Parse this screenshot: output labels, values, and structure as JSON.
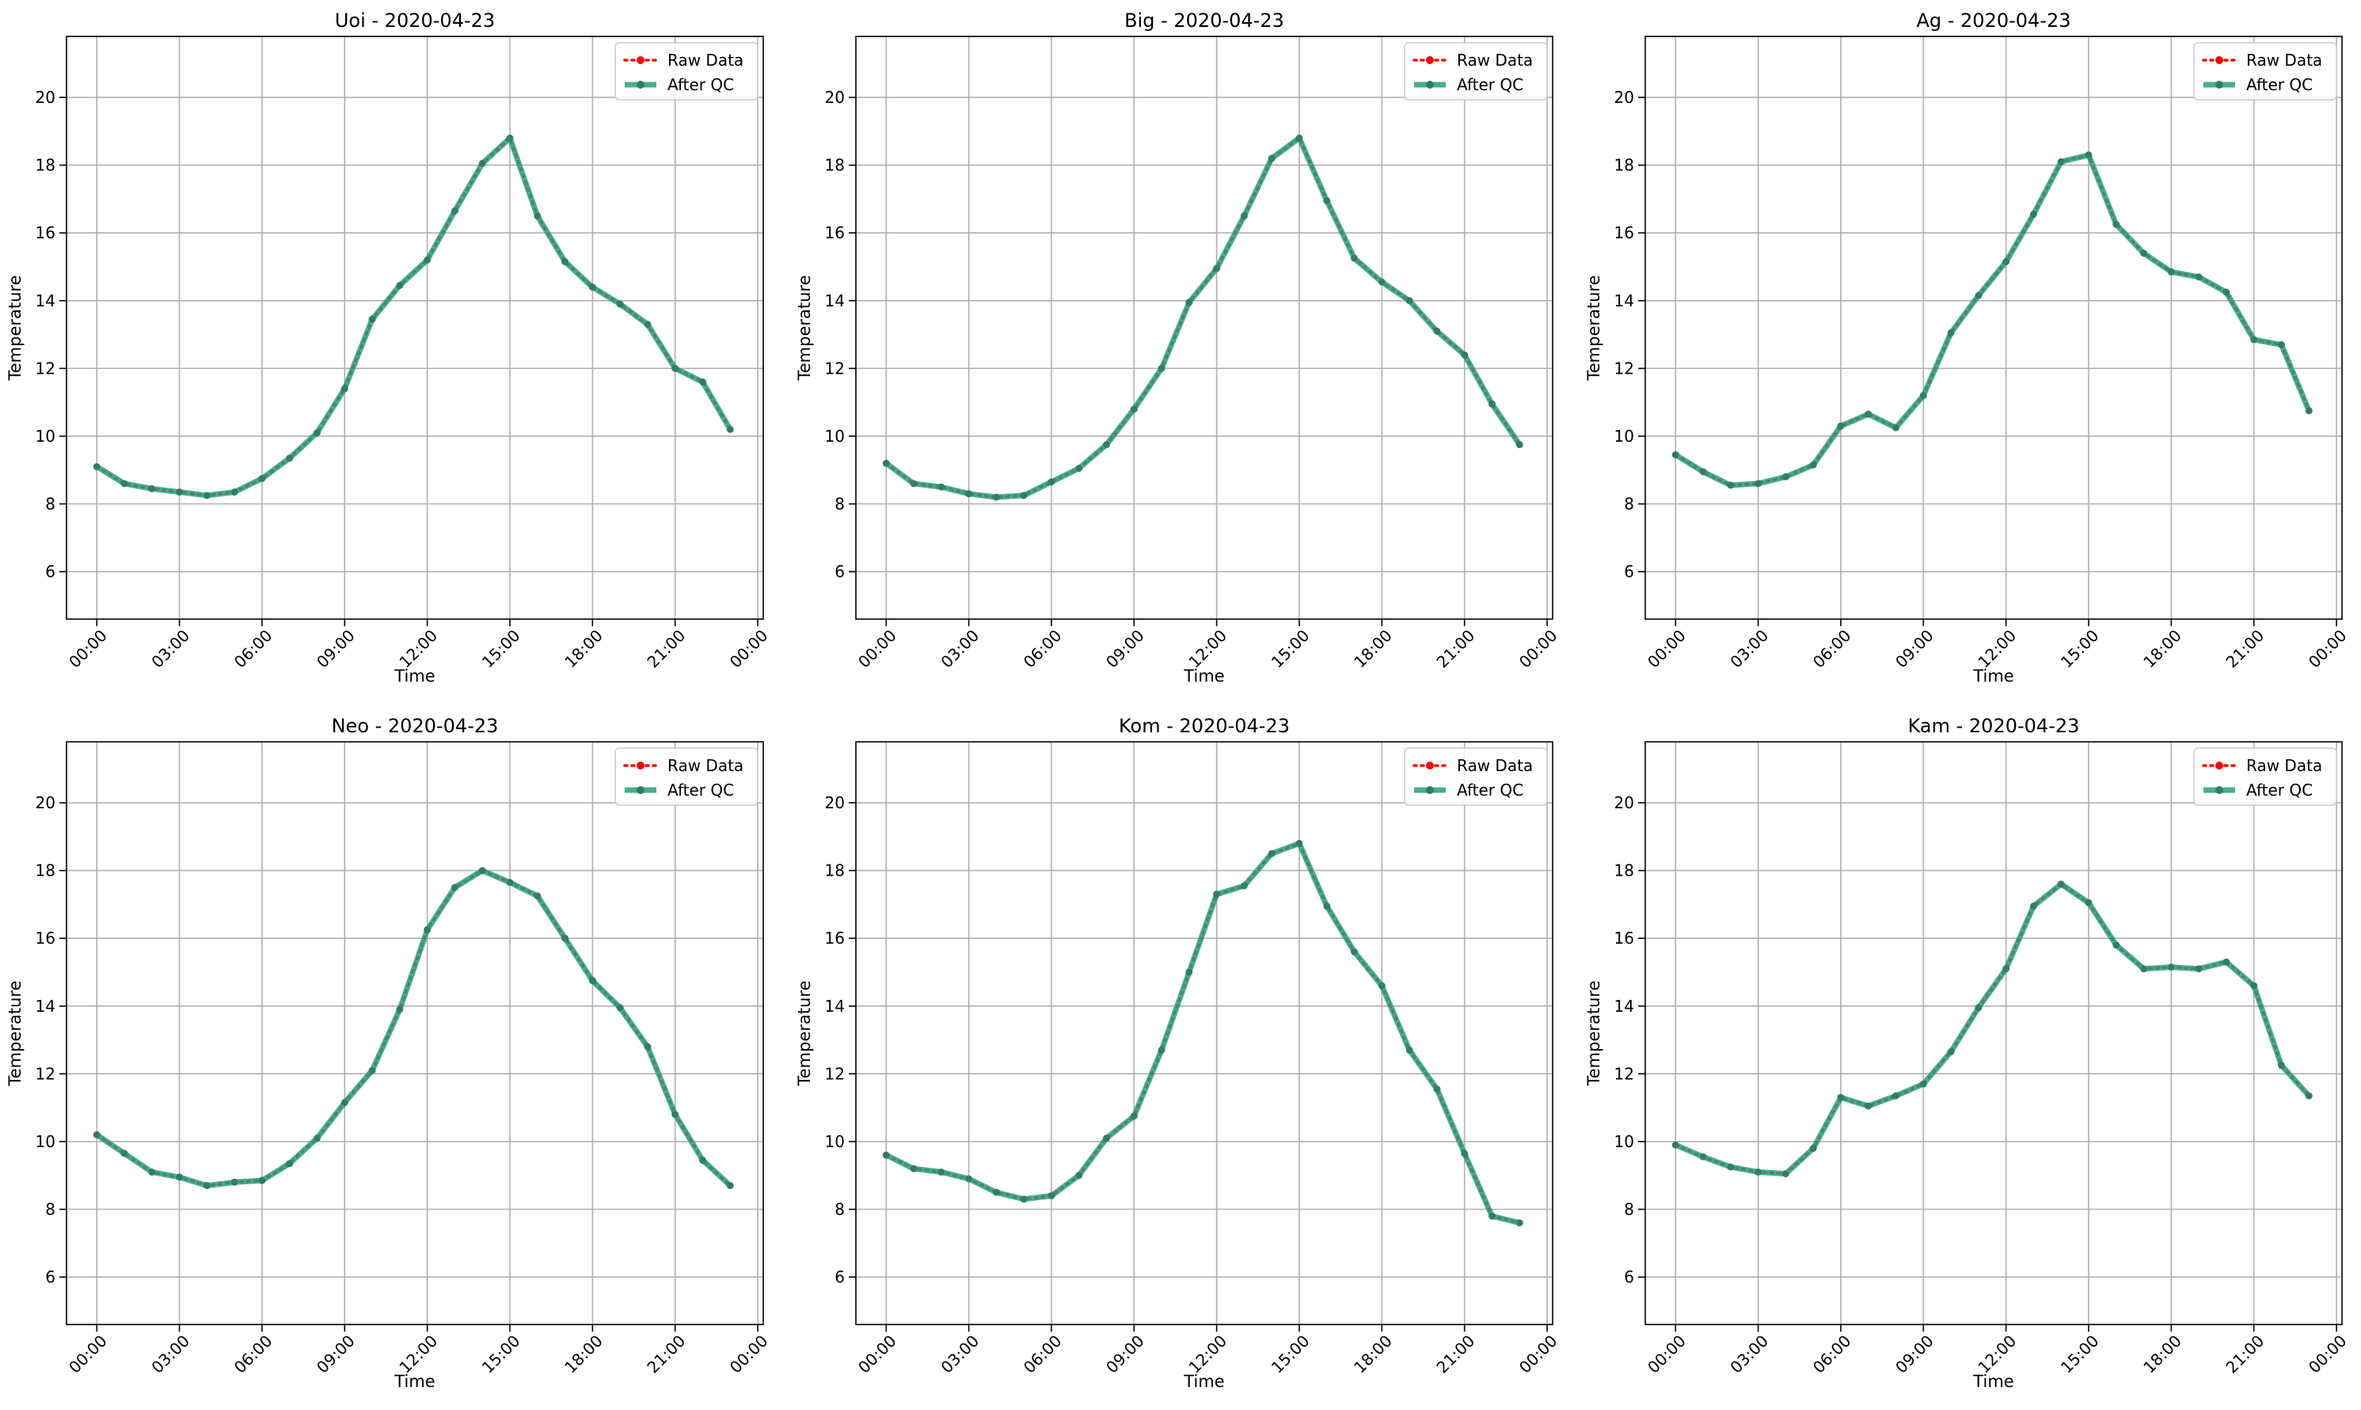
{
  "chart_data": [
    {
      "type": "line",
      "title": "Uoi - 2020-04-23",
      "xlabel": "Time",
      "ylabel": "Temperature",
      "x_ticks": [
        "00:00",
        "03:00",
        "06:00",
        "09:00",
        "12:00",
        "15:00",
        "18:00",
        "21:00",
        "00:00"
      ],
      "y_ticks": [
        6,
        8,
        10,
        12,
        14,
        16,
        18,
        20
      ],
      "ylim": [
        4.6,
        21.8
      ],
      "xlim_hours": [
        -1.1,
        24.2
      ],
      "grid": true,
      "legend": "top-right",
      "hours": [
        0,
        1,
        2,
        3,
        4,
        5,
        6,
        7,
        8,
        9,
        10,
        11,
        12,
        13,
        14,
        15,
        16,
        17,
        18,
        19,
        20,
        21,
        22,
        23
      ],
      "series": [
        {
          "name": "Raw Data",
          "color": "#ff0000",
          "style": "dotted",
          "values": [
            9.1,
            8.6,
            8.45,
            8.35,
            8.25,
            8.35,
            8.75,
            9.35,
            10.1,
            11.4,
            13.45,
            14.45,
            15.2,
            16.65,
            18.05,
            18.8,
            16.5,
            15.15,
            14.4,
            13.9,
            13.3,
            12.0,
            11.6,
            10.2
          ]
        },
        {
          "name": "After QC",
          "color": "#2a9d7e",
          "style": "solid",
          "values": [
            9.1,
            8.6,
            8.45,
            8.35,
            8.25,
            8.35,
            8.75,
            9.35,
            10.1,
            11.4,
            13.45,
            14.45,
            15.2,
            16.65,
            18.05,
            18.8,
            16.5,
            15.15,
            14.4,
            13.9,
            13.3,
            12.0,
            11.6,
            10.2
          ]
        }
      ]
    },
    {
      "type": "line",
      "title": "Big - 2020-04-23",
      "xlabel": "Time",
      "ylabel": "Temperature",
      "x_ticks": [
        "00:00",
        "03:00",
        "06:00",
        "09:00",
        "12:00",
        "15:00",
        "18:00",
        "21:00",
        "00:00"
      ],
      "y_ticks": [
        6,
        8,
        10,
        12,
        14,
        16,
        18,
        20
      ],
      "ylim": [
        4.6,
        21.8
      ],
      "xlim_hours": [
        -1.1,
        24.2
      ],
      "grid": true,
      "legend": "top-right",
      "hours": [
        0,
        1,
        2,
        3,
        4,
        5,
        6,
        7,
        8,
        9,
        10,
        11,
        12,
        13,
        14,
        15,
        16,
        17,
        18,
        19,
        20,
        21,
        22,
        23
      ],
      "series": [
        {
          "name": "Raw Data",
          "color": "#ff0000",
          "style": "dotted",
          "values": [
            9.2,
            8.6,
            8.5,
            8.3,
            8.2,
            8.25,
            8.65,
            9.05,
            9.75,
            10.8,
            12.0,
            13.95,
            14.95,
            16.5,
            18.2,
            18.8,
            16.95,
            15.25,
            14.55,
            14.0,
            13.1,
            12.4,
            10.95,
            9.75
          ]
        },
        {
          "name": "After QC",
          "color": "#2a9d7e",
          "style": "solid",
          "values": [
            9.2,
            8.6,
            8.5,
            8.3,
            8.2,
            8.25,
            8.65,
            9.05,
            9.75,
            10.8,
            12.0,
            13.95,
            14.95,
            16.5,
            18.2,
            18.8,
            16.95,
            15.25,
            14.55,
            14.0,
            13.1,
            12.4,
            10.95,
            9.75
          ]
        }
      ]
    },
    {
      "type": "line",
      "title": "Ag - 2020-04-23",
      "xlabel": "Time",
      "ylabel": "Temperature",
      "x_ticks": [
        "00:00",
        "03:00",
        "06:00",
        "09:00",
        "12:00",
        "15:00",
        "18:00",
        "21:00",
        "00:00"
      ],
      "y_ticks": [
        6,
        8,
        10,
        12,
        14,
        16,
        18,
        20
      ],
      "ylim": [
        4.6,
        21.8
      ],
      "xlim_hours": [
        -1.1,
        24.2
      ],
      "grid": true,
      "legend": "top-right",
      "hours": [
        0,
        1,
        2,
        3,
        4,
        5,
        6,
        7,
        8,
        9,
        10,
        11,
        12,
        13,
        14,
        15,
        16,
        17,
        18,
        19,
        20,
        21,
        22,
        23
      ],
      "series": [
        {
          "name": "Raw Data",
          "color": "#ff0000",
          "style": "dotted",
          "values": [
            9.45,
            8.95,
            8.55,
            8.6,
            8.8,
            9.15,
            10.3,
            10.65,
            10.25,
            11.2,
            13.05,
            14.15,
            15.15,
            16.55,
            18.1,
            18.3,
            16.25,
            15.4,
            14.85,
            14.7,
            14.25,
            12.85,
            12.7,
            10.75
          ]
        },
        {
          "name": "After QC",
          "color": "#2a9d7e",
          "style": "solid",
          "values": [
            9.45,
            8.95,
            8.55,
            8.6,
            8.8,
            9.15,
            10.3,
            10.65,
            10.25,
            11.2,
            13.05,
            14.15,
            15.15,
            16.55,
            18.1,
            18.3,
            16.25,
            15.4,
            14.85,
            14.7,
            14.25,
            12.85,
            12.7,
            10.75
          ]
        }
      ]
    },
    {
      "type": "line",
      "title": "Neo - 2020-04-23",
      "xlabel": "Time",
      "ylabel": "Temperature",
      "x_ticks": [
        "00:00",
        "03:00",
        "06:00",
        "09:00",
        "12:00",
        "15:00",
        "18:00",
        "21:00",
        "00:00"
      ],
      "y_ticks": [
        6,
        8,
        10,
        12,
        14,
        16,
        18,
        20
      ],
      "ylim": [
        4.6,
        21.8
      ],
      "xlim_hours": [
        -1.1,
        24.2
      ],
      "grid": true,
      "legend": "top-right",
      "hours": [
        0,
        1,
        2,
        3,
        4,
        5,
        6,
        7,
        8,
        9,
        10,
        11,
        12,
        13,
        14,
        15,
        16,
        17,
        18,
        19,
        20,
        21,
        22,
        23
      ],
      "series": [
        {
          "name": "Raw Data",
          "color": "#ff0000",
          "style": "dotted",
          "values": [
            10.2,
            9.65,
            9.1,
            8.95,
            8.7,
            8.8,
            8.85,
            9.35,
            10.1,
            11.15,
            12.1,
            13.9,
            16.25,
            17.5,
            18.0,
            17.65,
            17.25,
            16.0,
            14.75,
            13.95,
            12.8,
            10.8,
            9.45,
            8.7
          ]
        },
        {
          "name": "After QC",
          "color": "#2a9d7e",
          "style": "solid",
          "values": [
            10.2,
            9.65,
            9.1,
            8.95,
            8.7,
            8.8,
            8.85,
            9.35,
            10.1,
            11.15,
            12.1,
            13.9,
            16.25,
            17.5,
            18.0,
            17.65,
            17.25,
            16.0,
            14.75,
            13.95,
            12.8,
            10.8,
            9.45,
            8.7
          ]
        }
      ]
    },
    {
      "type": "line",
      "title": "Kom - 2020-04-23",
      "xlabel": "Time",
      "ylabel": "Temperature",
      "x_ticks": [
        "00:00",
        "03:00",
        "06:00",
        "09:00",
        "12:00",
        "15:00",
        "18:00",
        "21:00",
        "00:00"
      ],
      "y_ticks": [
        6,
        8,
        10,
        12,
        14,
        16,
        18,
        20
      ],
      "ylim": [
        4.6,
        21.8
      ],
      "xlim_hours": [
        -1.1,
        24.2
      ],
      "grid": true,
      "legend": "top-right",
      "hours": [
        0,
        1,
        2,
        3,
        4,
        5,
        6,
        7,
        8,
        9,
        10,
        11,
        12,
        13,
        14,
        15,
        16,
        17,
        18,
        19,
        20,
        21,
        22,
        23
      ],
      "series": [
        {
          "name": "Raw Data",
          "color": "#ff0000",
          "style": "dotted",
          "values": [
            9.6,
            9.2,
            9.1,
            8.9,
            8.5,
            8.3,
            8.4,
            9.0,
            10.1,
            10.75,
            12.7,
            15.0,
            17.3,
            17.55,
            18.5,
            18.8,
            16.95,
            15.6,
            14.6,
            12.7,
            11.55,
            9.65,
            7.8,
            7.6
          ]
        },
        {
          "name": "After QC",
          "color": "#2a9d7e",
          "style": "solid",
          "values": [
            9.6,
            9.2,
            9.1,
            8.9,
            8.5,
            8.3,
            8.4,
            9.0,
            10.1,
            10.75,
            12.7,
            15.0,
            17.3,
            17.55,
            18.5,
            18.8,
            16.95,
            15.6,
            14.6,
            12.7,
            11.55,
            9.65,
            7.8,
            7.6
          ]
        }
      ]
    },
    {
      "type": "line",
      "title": "Kam - 2020-04-23",
      "xlabel": "Time",
      "ylabel": "Temperature",
      "x_ticks": [
        "00:00",
        "03:00",
        "06:00",
        "09:00",
        "12:00",
        "15:00",
        "18:00",
        "21:00",
        "00:00"
      ],
      "y_ticks": [
        6,
        8,
        10,
        12,
        14,
        16,
        18,
        20
      ],
      "ylim": [
        4.6,
        21.8
      ],
      "xlim_hours": [
        -1.1,
        24.2
      ],
      "grid": true,
      "legend": "top-right",
      "hours": [
        0,
        1,
        2,
        3,
        4,
        5,
        6,
        7,
        8,
        9,
        10,
        11,
        12,
        13,
        14,
        15,
        16,
        17,
        18,
        19,
        20,
        21,
        22,
        23
      ],
      "series": [
        {
          "name": "Raw Data",
          "color": "#ff0000",
          "style": "dotted",
          "values": [
            9.9,
            9.55,
            9.25,
            9.1,
            9.05,
            9.8,
            11.3,
            11.05,
            11.35,
            11.7,
            12.65,
            13.95,
            15.1,
            16.95,
            17.6,
            17.05,
            15.8,
            15.1,
            15.15,
            15.1,
            15.3,
            14.6,
            12.25,
            11.35
          ]
        },
        {
          "name": "After QC",
          "color": "#2a9d7e",
          "style": "solid",
          "values": [
            9.9,
            9.55,
            9.25,
            9.1,
            9.05,
            9.8,
            11.3,
            11.05,
            11.35,
            11.7,
            12.65,
            13.95,
            15.1,
            16.95,
            17.6,
            17.05,
            15.8,
            15.1,
            15.15,
            15.1,
            15.3,
            14.6,
            12.25,
            11.35
          ]
        }
      ]
    }
  ]
}
